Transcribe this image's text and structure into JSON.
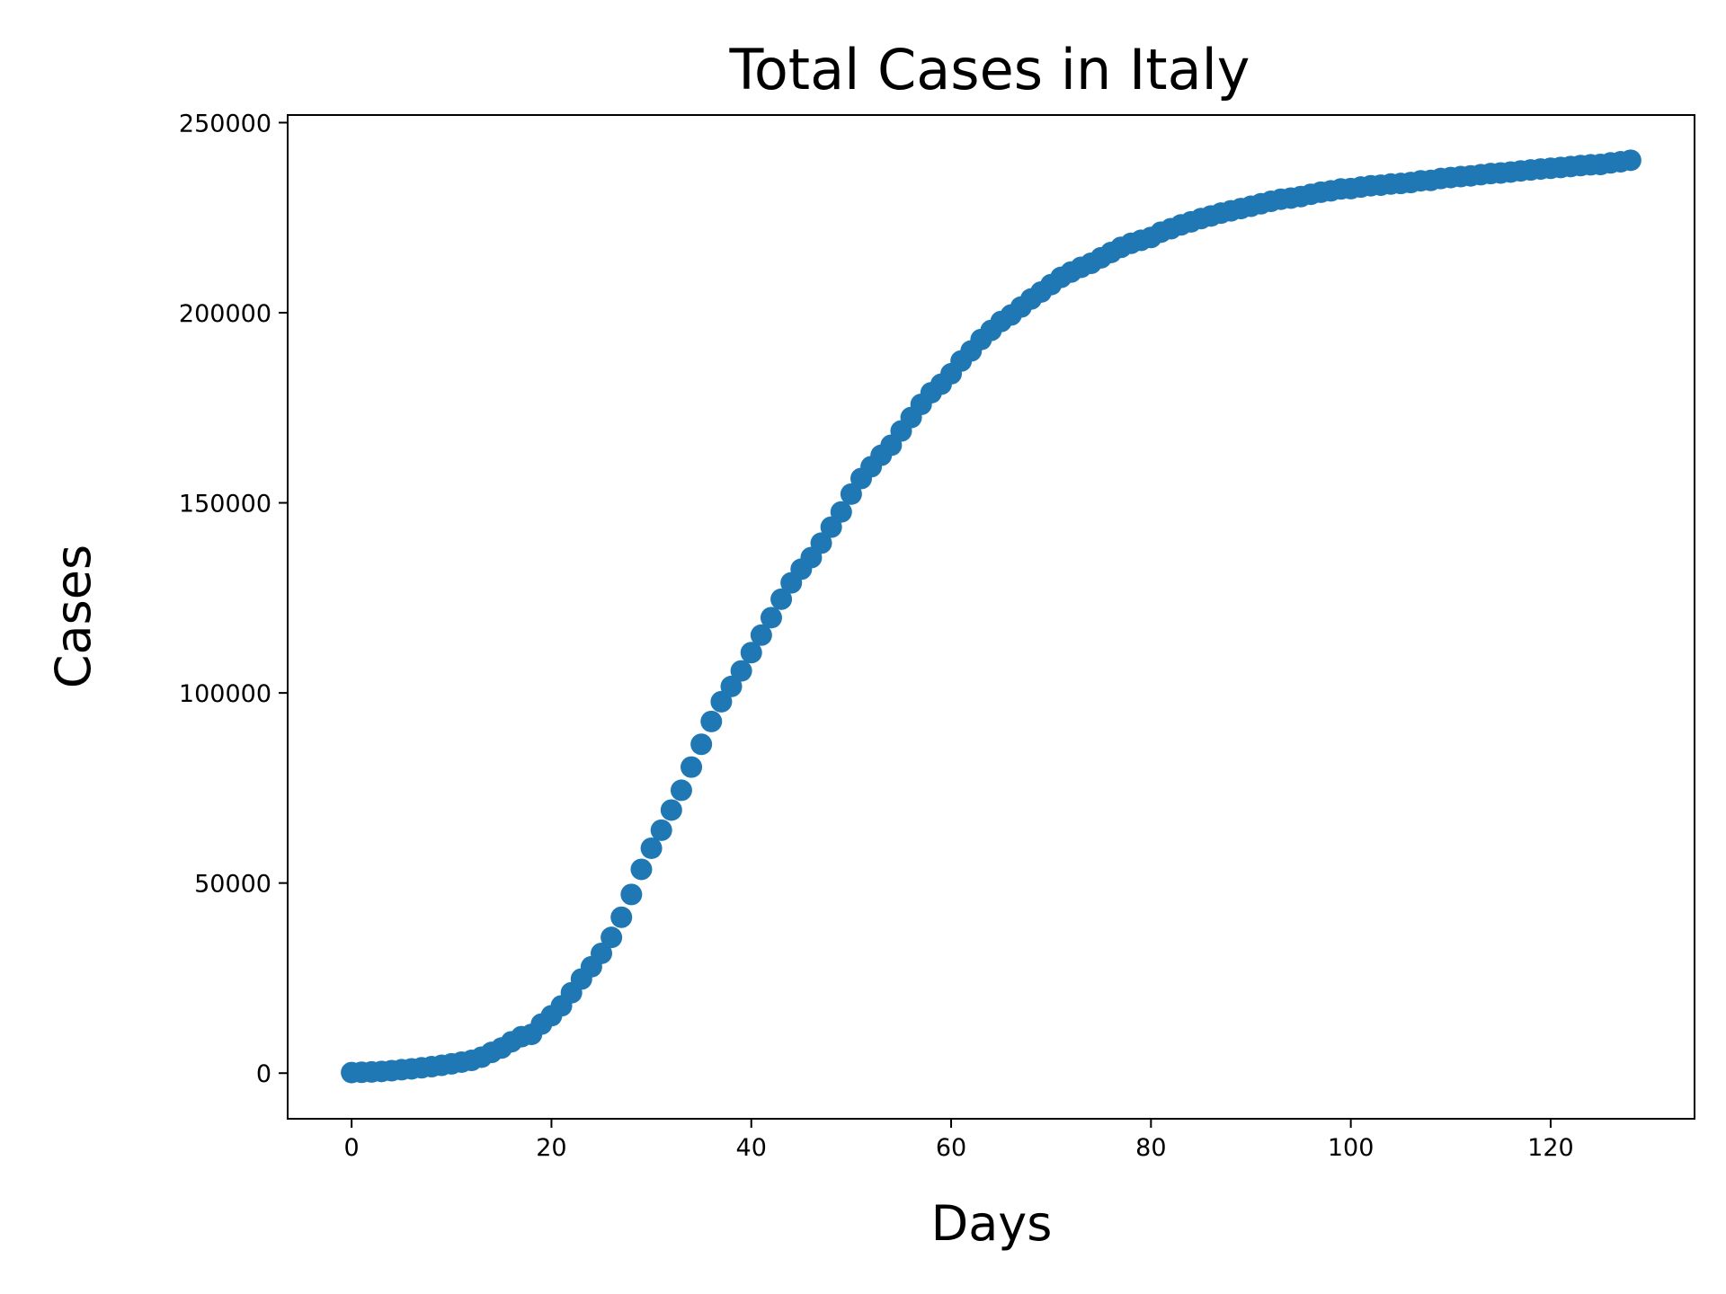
{
  "chart_data": {
    "type": "scatter",
    "title": "Total Cases in Italy",
    "xlabel": "Days",
    "ylabel": "Cases",
    "xlim": [
      -6.4,
      134.4
    ],
    "ylim": [
      -12000,
      252000
    ],
    "x_ticks": [
      0,
      20,
      40,
      60,
      80,
      100,
      120
    ],
    "y_ticks": [
      0,
      50000,
      100000,
      150000,
      200000,
      250000
    ],
    "grid": false,
    "legend": "none",
    "series": [
      {
        "color": "#1f77b4",
        "x": [
          0,
          1,
          2,
          3,
          4,
          5,
          6,
          7,
          8,
          9,
          10,
          11,
          12,
          13,
          14,
          15,
          16,
          17,
          18,
          19,
          20,
          21,
          22,
          23,
          24,
          25,
          26,
          27,
          28,
          29,
          30,
          31,
          32,
          33,
          34,
          35,
          36,
          37,
          38,
          39,
          40,
          41,
          42,
          43,
          44,
          45,
          46,
          47,
          48,
          49,
          50,
          51,
          52,
          53,
          54,
          55,
          56,
          57,
          58,
          59,
          60,
          61,
          62,
          63,
          64,
          65,
          66,
          67,
          68,
          69,
          70,
          71,
          72,
          73,
          74,
          75,
          76,
          77,
          78,
          79,
          80,
          81,
          82,
          83,
          84,
          85,
          86,
          87,
          88,
          89,
          90,
          91,
          92,
          93,
          94,
          95,
          96,
          97,
          98,
          99,
          100,
          101,
          102,
          103,
          104,
          105,
          106,
          107,
          108,
          109,
          110,
          111,
          112,
          113,
          114,
          115,
          116,
          117,
          118,
          119,
          120,
          121,
          122,
          123,
          124,
          125,
          126,
          127,
          128
        ],
        "y": [
          150,
          230,
          320,
          450,
          650,
          900,
          1130,
          1400,
          1700,
          2050,
          2450,
          2900,
          3350,
          4200,
          5450,
          6600,
          8250,
          9600,
          10200,
          12900,
          15100,
          17700,
          21150,
          24750,
          27980,
          31500,
          35700,
          41000,
          47000,
          53600,
          59150,
          63900,
          69200,
          74400,
          80500,
          86500,
          92500,
          97700,
          101700,
          105800,
          110600,
          115200,
          119800,
          124650,
          128950,
          132550,
          135600,
          139400,
          143600,
          147600,
          152300,
          156400,
          159500,
          162500,
          165150,
          168900,
          172450,
          175900,
          178950,
          181200,
          183950,
          187300,
          189950,
          192950,
          195350,
          197700,
          199400,
          201500,
          203600,
          205450,
          207400,
          209300,
          210700,
          211950,
          213000,
          214450,
          215850,
          217200,
          218250,
          219050,
          219800,
          221200,
          222100,
          223100,
          223900,
          224750,
          225450,
          226200,
          226800,
          227400,
          228000,
          228650,
          229300,
          229850,
          230150,
          230550,
          231150,
          231700,
          232050,
          232550,
          232650,
          233050,
          233400,
          233550,
          233850,
          234000,
          234250,
          234700,
          234800,
          235300,
          235550,
          235800,
          236000,
          236300,
          236600,
          236750,
          237000,
          237300,
          237550,
          237800,
          238000,
          238200,
          238450,
          238700,
          238900,
          239000,
          239400,
          239700,
          240100
        ]
      }
    ]
  }
}
